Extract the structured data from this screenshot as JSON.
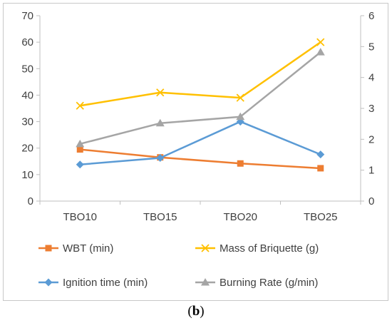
{
  "caption": {
    "open": "(",
    "letter": "b",
    "close": ")"
  },
  "chart_data": {
    "type": "line",
    "categories": [
      "TBO10",
      "TBO15",
      "TBO20",
      "TBO25"
    ],
    "y_left": {
      "min": 0,
      "max": 70,
      "ticks": [
        0,
        10,
        20,
        30,
        40,
        50,
        60,
        70
      ]
    },
    "y_right": {
      "min": 0,
      "max": 6,
      "ticks": [
        0,
        1,
        2,
        3,
        4,
        5,
        6
      ]
    },
    "grid": false,
    "legend_position": "bottom",
    "series": [
      {
        "name": "WBT (min)",
        "axis": "left",
        "marker": "square",
        "color": "#ed7d31",
        "values": [
          19.5,
          16.5,
          14.2,
          12.4
        ]
      },
      {
        "name": "Mass of Briquette (g)",
        "axis": "left",
        "marker": "x",
        "color": "#ffc000",
        "values": [
          36,
          41,
          39,
          60
        ]
      },
      {
        "name": "Ignition time (min)",
        "axis": "left",
        "marker": "diamond",
        "color": "#5b9bd5",
        "values": [
          13.8,
          16.3,
          30,
          17.6
        ]
      },
      {
        "name": "Burning Rate (g/min)",
        "axis": "right",
        "marker": "triangle",
        "color": "#a5a5a5",
        "values": [
          1.85,
          2.52,
          2.73,
          4.82
        ]
      }
    ]
  }
}
